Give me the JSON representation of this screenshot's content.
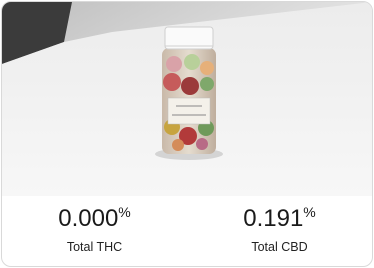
{
  "stats": [
    {
      "value": "0.000",
      "unit": "%",
      "label": "Total THC"
    },
    {
      "value": "0.191",
      "unit": "%",
      "label": "Total CBD"
    }
  ]
}
